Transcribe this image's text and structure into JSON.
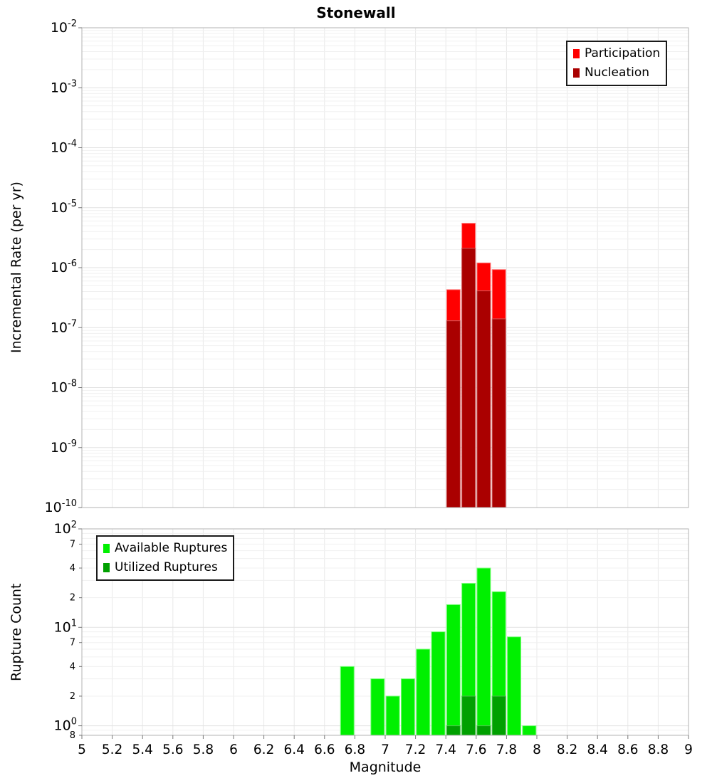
{
  "figure": {
    "title": "Stonewall",
    "x_label": "Magnitude",
    "background": "#ffffff",
    "frame_color": "#b3b3b3",
    "grid_minor_color": "#f0f0f0",
    "grid_major_color": "#e2e2e2",
    "grid_vertical_color": "#e8e8e8"
  },
  "top_chart": {
    "y_label": "Incremental Rate (per yr)",
    "legend": [
      {
        "label": "Participation",
        "color": "#ff0000"
      },
      {
        "label": "Nucleation",
        "color": "#aa0000"
      }
    ]
  },
  "bottom_chart": {
    "y_label": "Rupture Count",
    "legend": [
      {
        "label": "Available Ruptures",
        "color": "#00f000"
      },
      {
        "label": "Utilized Ruptures",
        "color": "#00a000"
      }
    ]
  },
  "chart_data": [
    {
      "type": "bar",
      "title": "Stonewall",
      "ylabel": "Incremental Rate (per yr)",
      "yscale": "log",
      "ylim": [
        1e-10,
        0.01
      ],
      "xlim": [
        5,
        9
      ],
      "bin_width": 0.1,
      "grid": true,
      "legend_position": "top-right",
      "x": [
        7.45,
        7.55,
        7.65,
        7.75
      ],
      "series": [
        {
          "name": "Participation",
          "color": "#ff0000",
          "edge": "#ff8080",
          "values": [
            4.3e-07,
            5.5e-06,
            1.2e-06,
            9.3e-07
          ]
        },
        {
          "name": "Nucleation",
          "color": "#aa0000",
          "edge": "#cc5c5c",
          "values": [
            1.3e-07,
            2.1e-06,
            4.1e-07,
            1.4e-07
          ]
        }
      ],
      "x_tick_labels": [],
      "y_ticks_major": [
        {
          "v": 0.01,
          "label": "10^-2"
        },
        {
          "v": 0.001,
          "label": "10^-3"
        },
        {
          "v": 0.0001,
          "label": "10^-4"
        },
        {
          "v": 1e-05,
          "label": "10^-5"
        },
        {
          "v": 1e-06,
          "label": "10^-6"
        },
        {
          "v": 1e-07,
          "label": "10^-7"
        },
        {
          "v": 1e-08,
          "label": "10^-8"
        },
        {
          "v": 1e-09,
          "label": "10^-9"
        },
        {
          "v": 1e-10,
          "label": "10^-10"
        }
      ],
      "y_ticks_minor": []
    },
    {
      "type": "bar",
      "ylabel": "Rupture Count",
      "xlabel": "Magnitude",
      "yscale": "log",
      "ylim": [
        0.8,
        100
      ],
      "xlim": [
        5,
        9
      ],
      "bin_width": 0.1,
      "grid": true,
      "legend_position": "top-left",
      "x": [
        6.75,
        6.95,
        7.05,
        7.15,
        7.25,
        7.35,
        7.45,
        7.55,
        7.65,
        7.75,
        7.85,
        7.95
      ],
      "series": [
        {
          "name": "Available Ruptures",
          "color": "#00f000",
          "edge": "#7dff7d",
          "values": [
            4,
            3,
            2,
            3,
            6,
            9,
            17,
            28,
            40,
            23,
            8,
            1
          ]
        },
        {
          "name": "Utilized Ruptures",
          "color": "#00a000",
          "edge": "#4fc44f",
          "values": [
            0,
            0,
            0,
            0,
            0,
            0,
            1,
            2,
            1,
            2,
            0,
            0
          ]
        }
      ],
      "x_tick_labels": [
        "5",
        "5.2",
        "5.4",
        "5.6",
        "5.8",
        "6",
        "6.2",
        "6.4",
        "6.6",
        "6.8",
        "7",
        "7.2",
        "7.4",
        "7.6",
        "7.8",
        "8",
        "8.2",
        "8.4",
        "8.6",
        "8.8",
        "9"
      ],
      "y_ticks_major": [
        {
          "v": 100,
          "label": "10^2"
        },
        {
          "v": 10,
          "label": "10^1"
        },
        {
          "v": 1,
          "label": "10^0"
        }
      ],
      "y_ticks_minor": [
        {
          "v": 70,
          "label": "7"
        },
        {
          "v": 40,
          "label": "4"
        },
        {
          "v": 20,
          "label": "2"
        },
        {
          "v": 7,
          "label": "7"
        },
        {
          "v": 4,
          "label": "4"
        },
        {
          "v": 2,
          "label": "2"
        },
        {
          "v": 0.8,
          "label": "8"
        }
      ]
    }
  ]
}
